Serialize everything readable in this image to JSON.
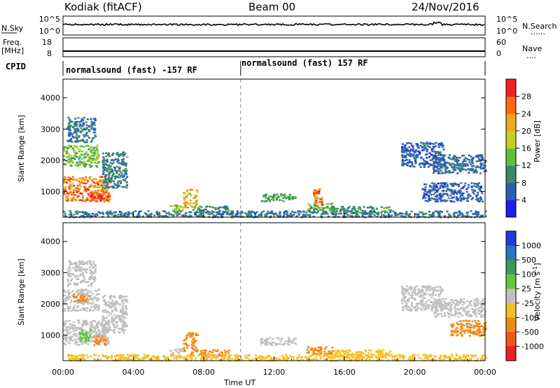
{
  "header": {
    "station": "Kodiak (fitACF)",
    "beam": "Beam 00",
    "date": "24/Nov/2016"
  },
  "noise_panel": {
    "left_label": "N.Sky",
    "right_label": "N.Search",
    "right_sub": "......",
    "left_ticks": [
      "10^5",
      "10^0"
    ],
    "right_ticks": [
      "10^5",
      "10^0"
    ]
  },
  "freq_panel": {
    "left_label_1": "Freq.",
    "left_label_2": "[MHz]",
    "right_label": "Nave",
    "right_sub": "....",
    "left_ticks": [
      "18",
      "8"
    ],
    "right_ticks": [
      "60",
      "0"
    ]
  },
  "cpid_panel": {
    "label": "CPID",
    "segments": [
      {
        "text": "normalsound (fast) -157 RF",
        "start_hour": 0
      },
      {
        "text": "normalsound (fast) 157 RF",
        "start_hour": 10.1
      }
    ]
  },
  "x_axis": {
    "label": "Time UT",
    "range_hours": [
      0,
      24
    ],
    "ticks": [
      "00:00",
      "04:00",
      "08:00",
      "12:00",
      "16:00",
      "20:00",
      "00:00"
    ],
    "tick_hours": [
      0,
      4,
      8,
      12,
      16,
      20,
      24
    ]
  },
  "chart_data": [
    {
      "type": "heatmap",
      "ylabel": "Slant Range [km]",
      "ylim": [
        180,
        4600
      ],
      "yticks": [
        "1000",
        "2000",
        "3000",
        "4000"
      ],
      "ytick_values": [
        1000,
        2000,
        3000,
        4000
      ],
      "colorbar": {
        "label": "Power [dB]",
        "range": [
          0,
          32
        ],
        "ticks": [
          "4",
          "8",
          "12",
          "16",
          "20",
          "24",
          "28"
        ],
        "tick_values": [
          4,
          8,
          12,
          16,
          20,
          24,
          28
        ],
        "colors": [
          "#1d1df2",
          "#2e5fb7",
          "#3a8a68",
          "#5dc33a",
          "#c9cc22",
          "#f0a818",
          "#ff6a0e",
          "#f02020"
        ]
      },
      "echo_regions": [
        {
          "t": [
            0.0,
            2.6
          ],
          "r": [
            700,
            1500
          ],
          "value": 25
        },
        {
          "t": [
            1.5,
            2.6
          ],
          "r": [
            700,
            1000
          ],
          "value": 29
        },
        {
          "t": [
            0.0,
            2.0
          ],
          "r": [
            1800,
            2500
          ],
          "value": 14
        },
        {
          "t": [
            2.2,
            3.6
          ],
          "r": [
            1100,
            2300
          ],
          "value": 9
        },
        {
          "t": [
            0.2,
            1.8
          ],
          "r": [
            2600,
            3400
          ],
          "value": 8
        },
        {
          "t": [
            6.0,
            6.8
          ],
          "r": [
            400,
            600
          ],
          "value": 16
        },
        {
          "t": [
            6.8,
            7.6
          ],
          "r": [
            500,
            1100
          ],
          "value": 20
        },
        {
          "t": [
            7.2,
            9.4
          ],
          "r": [
            350,
            550
          ],
          "value": 10
        },
        {
          "t": [
            11.2,
            13.2
          ],
          "r": [
            700,
            950
          ],
          "value": 12
        },
        {
          "t": [
            13.8,
            15.4
          ],
          "r": [
            400,
            650
          ],
          "value": 14
        },
        {
          "t": [
            14.2,
            14.7
          ],
          "r": [
            500,
            1100
          ],
          "value": 26
        },
        {
          "t": [
            15.2,
            18.6
          ],
          "r": [
            300,
            550
          ],
          "value": 11
        },
        {
          "t": [
            0.0,
            24.0
          ],
          "r": [
            200,
            400
          ],
          "value": 8
        },
        {
          "t": [
            19.2,
            21.6
          ],
          "r": [
            1800,
            2600
          ],
          "value": 6
        },
        {
          "t": [
            21.0,
            24.0
          ],
          "r": [
            1600,
            2200
          ],
          "value": 7
        },
        {
          "t": [
            20.4,
            23.8
          ],
          "r": [
            700,
            1300
          ],
          "value": 6
        }
      ]
    },
    {
      "type": "heatmap",
      "ylabel": "Slant Range [km]",
      "ylim": [
        180,
        4600
      ],
      "yticks": [
        "1000",
        "2000",
        "3000",
        "4000"
      ],
      "ytick_values": [
        1000,
        2000,
        3000,
        4000
      ],
      "colorbar": {
        "label": "Velocity [m s^-1]",
        "ticks": [
          "1000",
          "500",
          "100",
          "25",
          "-25",
          "-100",
          "-500",
          "-1000"
        ],
        "colors": [
          "#1d3bd6",
          "#2a72c8",
          "#3a9a5a",
          "#5fc843",
          "#c0c0c0",
          "#f5c021",
          "#f08a16",
          "#f0581a",
          "#e82020"
        ]
      },
      "echo_regions": [
        {
          "t": [
            0.0,
            2.6
          ],
          "r": [
            700,
            1500
          ],
          "value": 0
        },
        {
          "t": [
            0.9,
            1.6
          ],
          "r": [
            800,
            1200
          ],
          "value": 80
        },
        {
          "t": [
            1.6,
            2.4
          ],
          "r": [
            700,
            1000
          ],
          "value": -400
        },
        {
          "t": [
            0.0,
            2.0
          ],
          "r": [
            1800,
            2500
          ],
          "value": 0
        },
        {
          "t": [
            0.5,
            1.5
          ],
          "r": [
            2100,
            2350
          ],
          "value": -150
        },
        {
          "t": [
            2.2,
            3.6
          ],
          "r": [
            1100,
            2300
          ],
          "value": 0
        },
        {
          "t": [
            0.2,
            1.8
          ],
          "r": [
            2600,
            3400
          ],
          "value": 0
        },
        {
          "t": [
            6.0,
            6.8
          ],
          "r": [
            400,
            600
          ],
          "value": 0
        },
        {
          "t": [
            6.8,
            7.6
          ],
          "r": [
            500,
            1100
          ],
          "value": -120
        },
        {
          "t": [
            7.2,
            9.4
          ],
          "r": [
            350,
            550
          ],
          "value": -200
        },
        {
          "t": [
            11.2,
            13.2
          ],
          "r": [
            700,
            950
          ],
          "value": 0
        },
        {
          "t": [
            13.8,
            15.4
          ],
          "r": [
            400,
            650
          ],
          "value": -150
        },
        {
          "t": [
            15.2,
            18.6
          ],
          "r": [
            300,
            550
          ],
          "value": -60
        },
        {
          "t": [
            0.0,
            24.0
          ],
          "r": [
            200,
            400
          ],
          "value": -40
        },
        {
          "t": [
            19.2,
            21.6
          ],
          "r": [
            1800,
            2600
          ],
          "value": 0
        },
        {
          "t": [
            21.0,
            24.0
          ],
          "r": [
            1600,
            2200
          ],
          "value": 0
        },
        {
          "t": [
            22.0,
            24.0
          ],
          "r": [
            1000,
            1500
          ],
          "value": -200
        }
      ]
    }
  ]
}
